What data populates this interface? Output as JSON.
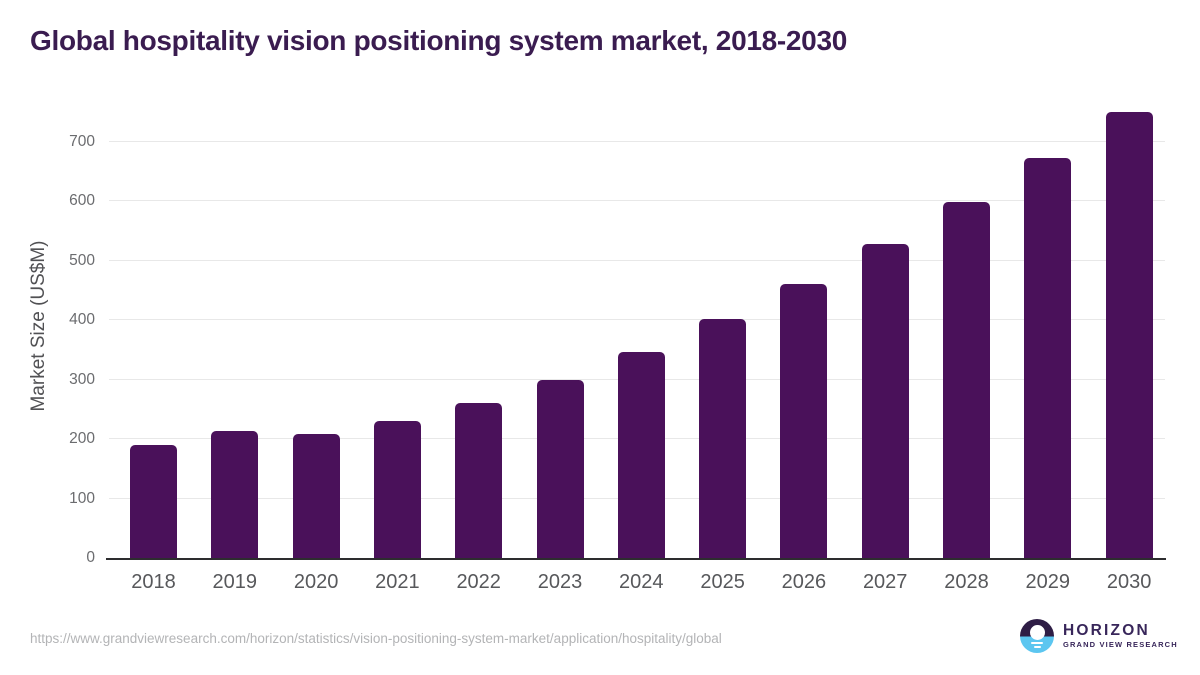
{
  "chart_data": {
    "type": "bar",
    "title": "Global hospitality vision positioning system market, 2018-2030",
    "categories": [
      "2018",
      "2019",
      "2020",
      "2021",
      "2022",
      "2023",
      "2024",
      "2025",
      "2026",
      "2027",
      "2028",
      "2029",
      "2030"
    ],
    "values": [
      190,
      213,
      209,
      231,
      261,
      300,
      346,
      401,
      461,
      528,
      599,
      673,
      749
    ],
    "xlabel": "",
    "ylabel": "Market Size (US$M)",
    "ylim": [
      0,
      780
    ],
    "yticks": [
      0,
      100,
      200,
      300,
      400,
      500,
      600,
      700
    ],
    "grid": "horizontal-only",
    "legend": "none",
    "bar_color": "#4a115a",
    "title_color": "#3a1c50"
  },
  "footer": {
    "source_url": "https://www.grandviewresearch.com/horizon/statistics/vision-positioning-system-market/application/hospitality/global",
    "logo": {
      "brand": "HORIZON",
      "subtitle": "GRAND VIEW RESEARCH",
      "icon": "sun-over-horizon-icon",
      "purple": "#38265a",
      "blue": "#5cc6f0"
    }
  }
}
